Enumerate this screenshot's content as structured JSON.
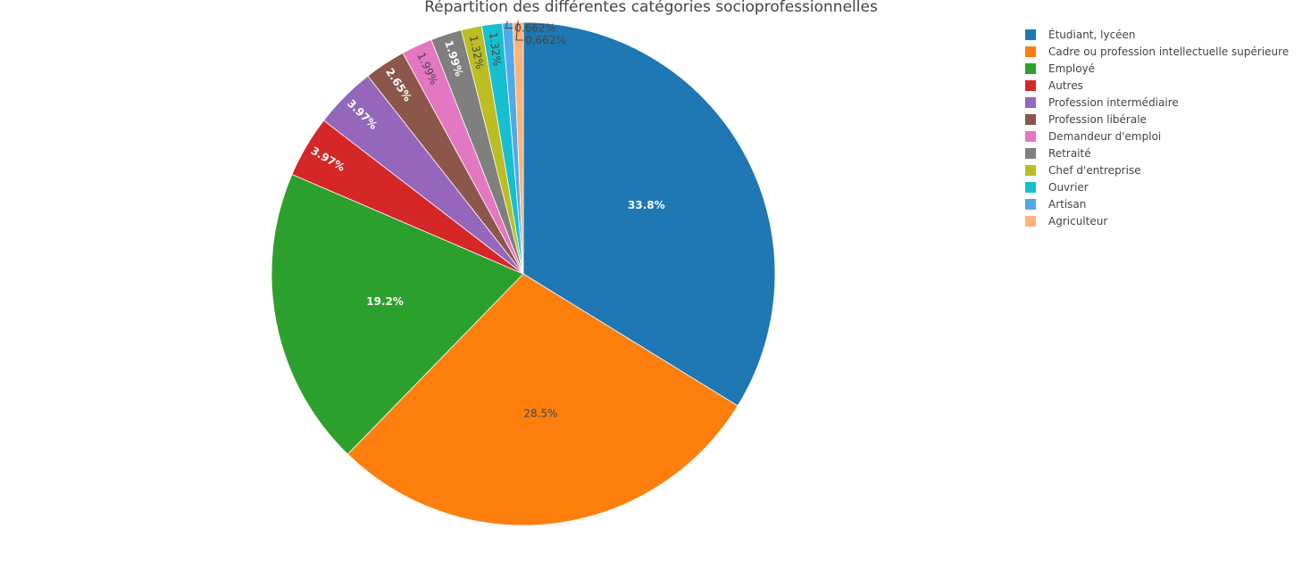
{
  "chart_data": {
    "type": "pie",
    "title": "Répartition des différentes catégories socioprofessionnelles",
    "legend_position": "top-right",
    "slices": [
      {
        "name": "Étudiant, lycéen",
        "value": 33.8,
        "label": "33.8%",
        "color": "#1f77b4"
      },
      {
        "name": "Cadre ou profession intellectuelle supérieure",
        "value": 28.5,
        "label": "28.5%",
        "color": "#ff7f0e"
      },
      {
        "name": "Employé",
        "value": 19.2,
        "label": "19.2%",
        "color": "#2ca02c"
      },
      {
        "name": "Autres",
        "value": 3.97,
        "label": "3.97%",
        "color": "#d62728"
      },
      {
        "name": "Profession intermédiaire",
        "value": 3.97,
        "label": "3.97%",
        "color": "#9467bd"
      },
      {
        "name": "Profession libérale",
        "value": 2.65,
        "label": "2.65%",
        "color": "#8c564b"
      },
      {
        "name": "Demandeur d'emploi",
        "value": 1.99,
        "label": "1.99%",
        "color": "#e377c2"
      },
      {
        "name": "Retraité",
        "value": 1.99,
        "label": "1.99%",
        "color": "#7f7f7f"
      },
      {
        "name": "Chef d'entreprise",
        "value": 1.32,
        "label": "1.32%",
        "color": "#bcbd22"
      },
      {
        "name": "Ouvrier",
        "value": 1.32,
        "label": "1.32%",
        "color": "#17becf"
      },
      {
        "name": "Artisan",
        "value": 0.662,
        "label": "0.662%",
        "color": "#51a9e8"
      },
      {
        "name": "Agriculteur",
        "value": 0.662,
        "label": "0.662%",
        "color": "#ffb27a"
      }
    ]
  }
}
